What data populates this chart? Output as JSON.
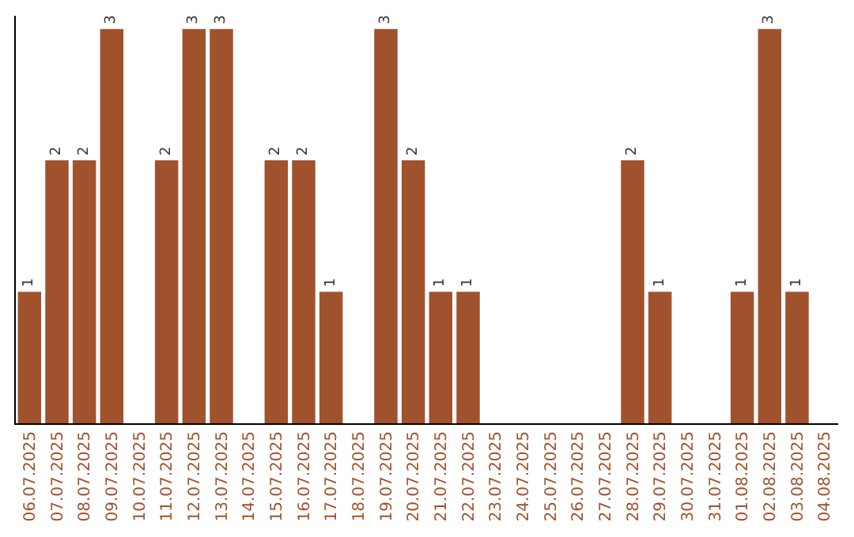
{
  "chart_data": {
    "type": "bar",
    "categories": [
      "06.07.2025",
      "07.07.2025",
      "08.07.2025",
      "09.07.2025",
      "10.07.2025",
      "11.07.2025",
      "12.07.2025",
      "13.07.2025",
      "14.07.2025",
      "15.07.2025",
      "16.07.2025",
      "17.07.2025",
      "18.07.2025",
      "19.07.2025",
      "20.07.2025",
      "21.07.2025",
      "22.07.2025",
      "23.07.2025",
      "24.07.2025",
      "25.07.2025",
      "26.07.2025",
      "27.07.2025",
      "28.07.2025",
      "29.07.2025",
      "30.07.2025",
      "31.07.2025",
      "01.08.2025",
      "02.08.2025",
      "03.08.2025",
      "04.08.2025"
    ],
    "values": [
      1,
      2,
      2,
      3,
      0,
      2,
      3,
      3,
      0,
      2,
      2,
      1,
      0,
      3,
      2,
      1,
      1,
      0,
      0,
      0,
      0,
      0,
      2,
      1,
      0,
      0,
      1,
      3,
      1,
      0
    ],
    "value_labels": [
      "1",
      "2",
      "2",
      "3",
      null,
      "2",
      "3",
      "3",
      null,
      "2",
      "2",
      "1",
      null,
      "3",
      "2",
      "1",
      "1",
      null,
      null,
      null,
      null,
      null,
      "2",
      "1",
      null,
      null,
      "1",
      "3",
      "1",
      null
    ],
    "color": "#a0522d",
    "ylim": [
      0,
      3.1
    ],
    "tick_labels": "x"
  }
}
